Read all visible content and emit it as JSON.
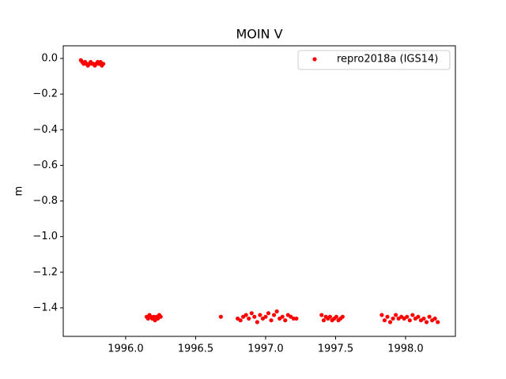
{
  "chart_data": {
    "type": "scatter",
    "title": "MOIN V",
    "ylabel": "m",
    "legend": "upper right",
    "series": [
      {
        "name": "repro2018a (IGS14)",
        "color": "#ff0000",
        "x": [
          1995.68,
          1995.69,
          1995.7,
          1995.71,
          1995.72,
          1995.73,
          1995.74,
          1995.75,
          1995.76,
          1995.77,
          1995.78,
          1995.79,
          1995.8,
          1995.81,
          1995.82,
          1995.83,
          1995.84,
          1996.15,
          1996.16,
          1996.17,
          1996.18,
          1996.19,
          1996.2,
          1996.21,
          1996.22,
          1996.23,
          1996.24,
          1996.25,
          1996.68,
          1996.8,
          1996.82,
          1996.84,
          1996.86,
          1996.88,
          1996.9,
          1996.92,
          1996.94,
          1996.96,
          1996.98,
          1997.0,
          1997.02,
          1997.04,
          1997.06,
          1997.08,
          1997.1,
          1997.12,
          1997.14,
          1997.16,
          1997.18,
          1997.2,
          1997.22,
          1997.4,
          1997.415,
          1997.43,
          1997.445,
          1997.46,
          1997.475,
          1997.49,
          1997.505,
          1997.52,
          1997.535,
          1997.55,
          1997.83,
          1997.85,
          1997.87,
          1997.89,
          1997.91,
          1997.93,
          1997.95,
          1997.97,
          1997.99,
          1998.01,
          1998.03,
          1998.05,
          1998.07,
          1998.09,
          1998.11,
          1998.13,
          1998.15,
          1998.17,
          1998.19,
          1998.21,
          1998.23
        ],
        "values": [
          -0.01,
          -0.02,
          -0.03,
          -0.02,
          -0.03,
          -0.04,
          -0.03,
          -0.02,
          -0.03,
          -0.03,
          -0.04,
          -0.03,
          -0.02,
          -0.03,
          -0.02,
          -0.04,
          -0.03,
          -1.45,
          -1.46,
          -1.44,
          -1.45,
          -1.46,
          -1.45,
          -1.47,
          -1.45,
          -1.46,
          -1.44,
          -1.45,
          -1.45,
          -1.46,
          -1.47,
          -1.45,
          -1.44,
          -1.46,
          -1.43,
          -1.45,
          -1.48,
          -1.44,
          -1.46,
          -1.45,
          -1.43,
          -1.47,
          -1.44,
          -1.42,
          -1.46,
          -1.45,
          -1.47,
          -1.44,
          -1.45,
          -1.46,
          -1.46,
          -1.44,
          -1.47,
          -1.45,
          -1.46,
          -1.45,
          -1.47,
          -1.46,
          -1.45,
          -1.47,
          -1.46,
          -1.45,
          -1.44,
          -1.47,
          -1.45,
          -1.48,
          -1.46,
          -1.44,
          -1.46,
          -1.45,
          -1.46,
          -1.45,
          -1.47,
          -1.44,
          -1.46,
          -1.45,
          -1.47,
          -1.46,
          -1.48,
          -1.45,
          -1.47,
          -1.46,
          -1.48
        ]
      }
    ],
    "xlim": [
      1995.554,
      1998.356
    ],
    "ylim": [
      -1.56,
      0.071
    ],
    "xticks": [
      {
        "value": 1996,
        "label": "1996.0"
      },
      {
        "value": 1996.5,
        "label": "1996.5"
      },
      {
        "value": 1997,
        "label": "1997.0"
      },
      {
        "value": 1997.5,
        "label": "1997.5"
      },
      {
        "value": 1998,
        "label": "1998.0"
      }
    ],
    "yticks": [
      {
        "value": 0,
        "label": "0.0"
      },
      {
        "value": -0.2,
        "label": "−0.2"
      },
      {
        "value": -0.4,
        "label": "−0.4"
      },
      {
        "value": -0.6,
        "label": "−0.6"
      },
      {
        "value": -0.8,
        "label": "−0.8"
      },
      {
        "value": -1.0,
        "label": "−1.0"
      },
      {
        "value": -1.2,
        "label": "−1.2"
      },
      {
        "value": -1.4,
        "label": "−1.4"
      }
    ],
    "grid": false
  }
}
